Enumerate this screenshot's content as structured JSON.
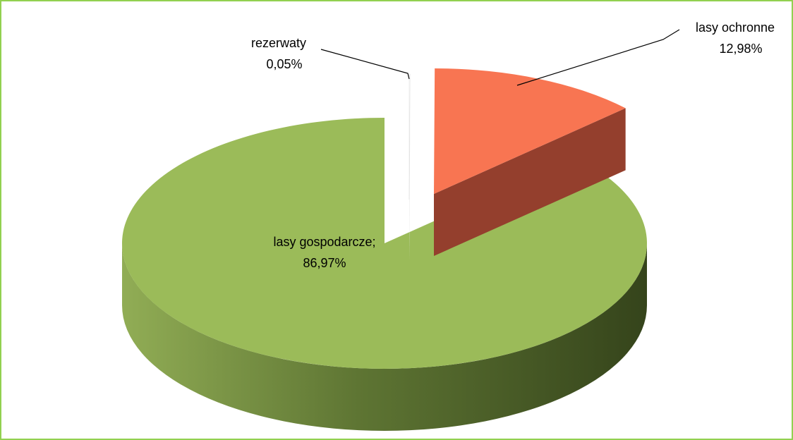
{
  "chart_data": {
    "type": "pie",
    "categories": [
      "rezerwaty",
      "lasy ochronne",
      "lasy gospodarcze;"
    ],
    "values": [
      0.05,
      12.98,
      86.97
    ],
    "value_labels": [
      "0,05%",
      "12,98%",
      "86,97%"
    ],
    "colors": [
      "#ffffff",
      "#f87552",
      "#9bbb59"
    ],
    "side_colors": [
      "#e8e8e8",
      "#943f2d",
      "#6f8a3c"
    ],
    "border_color": "#92d050"
  }
}
